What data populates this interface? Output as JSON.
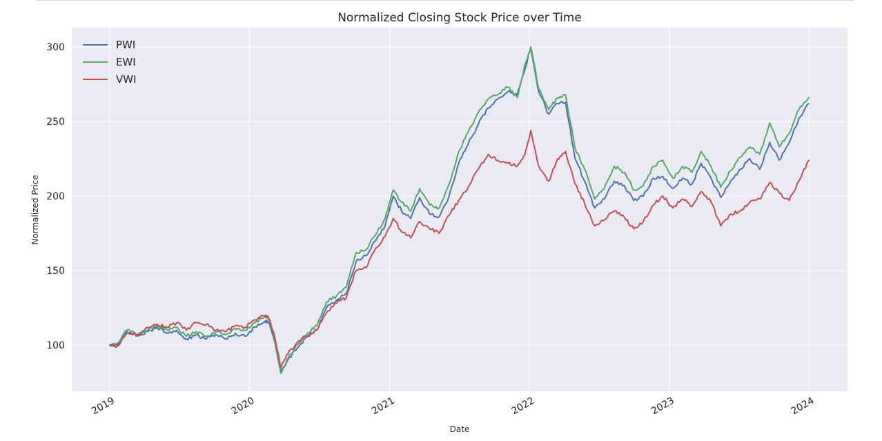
{
  "chart_data": {
    "type": "line",
    "title": "Normalized Closing Stock Price over Time",
    "xlabel": "Date",
    "ylabel": "Normalized Price",
    "xlim": [
      "2018-09-24",
      "2024-04-10"
    ],
    "ylim": [
      69,
      313
    ],
    "x_ticks": [
      "2019",
      "2020",
      "2021",
      "2022",
      "2023",
      "2024"
    ],
    "y_ticks": [
      100,
      150,
      200,
      250,
      300
    ],
    "grid": true,
    "legend_position": "top-left",
    "series": [
      {
        "name": "PWI",
        "color": "#4c72b0",
        "points": [
          [
            "2019-01-01",
            100
          ],
          [
            "2019-01-20",
            100
          ],
          [
            "2019-02-15",
            109
          ],
          [
            "2019-03-15",
            106
          ],
          [
            "2019-04-10",
            109
          ],
          [
            "2019-05-05",
            112
          ],
          [
            "2019-05-31",
            108
          ],
          [
            "2019-06-25",
            110
          ],
          [
            "2019-07-20",
            104
          ],
          [
            "2019-08-15",
            107
          ],
          [
            "2019-09-10",
            104
          ],
          [
            "2019-10-05",
            107
          ],
          [
            "2019-10-31",
            104
          ],
          [
            "2019-11-25",
            108
          ],
          [
            "2019-12-20",
            106
          ],
          [
            "2020-01-15",
            112
          ],
          [
            "2020-02-10",
            116
          ],
          [
            "2020-02-20",
            115
          ],
          [
            "2020-03-05",
            104
          ],
          [
            "2020-03-23",
            82
          ],
          [
            "2020-04-10",
            90
          ],
          [
            "2020-05-05",
            98
          ],
          [
            "2020-05-31",
            106
          ],
          [
            "2020-06-25",
            110
          ],
          [
            "2020-07-20",
            125
          ],
          [
            "2020-08-15",
            130
          ],
          [
            "2020-09-10",
            135
          ],
          [
            "2020-10-05",
            156
          ],
          [
            "2020-10-31",
            160
          ],
          [
            "2020-11-25",
            170
          ],
          [
            "2020-12-20",
            180
          ],
          [
            "2021-01-10",
            200
          ],
          [
            "2021-02-01",
            190
          ],
          [
            "2021-02-25",
            185
          ],
          [
            "2021-03-20",
            199
          ],
          [
            "2021-04-15",
            188
          ],
          [
            "2021-05-10",
            186
          ],
          [
            "2021-06-05",
            200
          ],
          [
            "2021-06-30",
            222
          ],
          [
            "2021-07-25",
            235
          ],
          [
            "2021-08-20",
            248
          ],
          [
            "2021-09-15",
            259
          ],
          [
            "2021-10-10",
            265
          ],
          [
            "2021-11-05",
            270
          ],
          [
            "2021-11-30",
            268
          ],
          [
            "2021-12-20",
            285
          ],
          [
            "2022-01-04",
            300
          ],
          [
            "2022-01-25",
            270
          ],
          [
            "2022-02-20",
            255
          ],
          [
            "2022-03-15",
            262
          ],
          [
            "2022-04-05",
            263
          ],
          [
            "2022-04-30",
            225
          ],
          [
            "2022-05-25",
            210
          ],
          [
            "2022-06-20",
            192
          ],
          [
            "2022-07-15",
            198
          ],
          [
            "2022-08-10",
            210
          ],
          [
            "2022-09-05",
            207
          ],
          [
            "2022-09-30",
            197
          ],
          [
            "2022-10-25",
            200
          ],
          [
            "2022-11-20",
            212
          ],
          [
            "2022-12-15",
            213
          ],
          [
            "2023-01-10",
            205
          ],
          [
            "2023-02-05",
            212
          ],
          [
            "2023-03-01",
            208
          ],
          [
            "2023-03-25",
            222
          ],
          [
            "2023-04-20",
            212
          ],
          [
            "2023-05-15",
            199
          ],
          [
            "2023-06-10",
            210
          ],
          [
            "2023-07-05",
            218
          ],
          [
            "2023-07-30",
            225
          ],
          [
            "2023-08-25",
            218
          ],
          [
            "2023-09-20",
            236
          ],
          [
            "2023-10-15",
            224
          ],
          [
            "2023-11-10",
            236
          ],
          [
            "2023-12-05",
            252
          ],
          [
            "2023-12-31",
            262
          ]
        ]
      },
      {
        "name": "EWI",
        "color": "#55a868",
        "points": [
          [
            "2019-01-01",
            100
          ],
          [
            "2019-01-20",
            101
          ],
          [
            "2019-02-15",
            110
          ],
          [
            "2019-03-15",
            107
          ],
          [
            "2019-04-10",
            110
          ],
          [
            "2019-05-05",
            113
          ],
          [
            "2019-05-31",
            110
          ],
          [
            "2019-06-25",
            112
          ],
          [
            "2019-07-20",
            106
          ],
          [
            "2019-08-15",
            109
          ],
          [
            "2019-09-10",
            106
          ],
          [
            "2019-10-05",
            109
          ],
          [
            "2019-10-31",
            107
          ],
          [
            "2019-11-25",
            111
          ],
          [
            "2019-12-20",
            110
          ],
          [
            "2020-01-15",
            115
          ],
          [
            "2020-02-10",
            119
          ],
          [
            "2020-02-20",
            118
          ],
          [
            "2020-03-05",
            106
          ],
          [
            "2020-03-23",
            81
          ],
          [
            "2020-04-10",
            91
          ],
          [
            "2020-05-05",
            100
          ],
          [
            "2020-05-31",
            108
          ],
          [
            "2020-06-25",
            113
          ],
          [
            "2020-07-20",
            129
          ],
          [
            "2020-08-15",
            133
          ],
          [
            "2020-09-10",
            139
          ],
          [
            "2020-10-05",
            162
          ],
          [
            "2020-10-31",
            164
          ],
          [
            "2020-11-25",
            174
          ],
          [
            "2020-12-20",
            185
          ],
          [
            "2021-01-10",
            204
          ],
          [
            "2021-02-01",
            196
          ],
          [
            "2021-02-25",
            190
          ],
          [
            "2021-03-20",
            205
          ],
          [
            "2021-04-15",
            194
          ],
          [
            "2021-05-10",
            192
          ],
          [
            "2021-06-05",
            208
          ],
          [
            "2021-06-30",
            230
          ],
          [
            "2021-07-25",
            243
          ],
          [
            "2021-08-20",
            256
          ],
          [
            "2021-09-15",
            265
          ],
          [
            "2021-10-10",
            268
          ],
          [
            "2021-11-05",
            273
          ],
          [
            "2021-11-30",
            266
          ],
          [
            "2021-12-20",
            288
          ],
          [
            "2022-01-04",
            300
          ],
          [
            "2022-01-25",
            272
          ],
          [
            "2022-02-20",
            258
          ],
          [
            "2022-03-15",
            266
          ],
          [
            "2022-04-05",
            268
          ],
          [
            "2022-04-30",
            232
          ],
          [
            "2022-05-25",
            218
          ],
          [
            "2022-06-20",
            198
          ],
          [
            "2022-07-15",
            205
          ],
          [
            "2022-08-10",
            220
          ],
          [
            "2022-09-05",
            216
          ],
          [
            "2022-09-30",
            204
          ],
          [
            "2022-10-25",
            207
          ],
          [
            "2022-11-20",
            220
          ],
          [
            "2022-12-15",
            224
          ],
          [
            "2023-01-10",
            212
          ],
          [
            "2023-02-05",
            220
          ],
          [
            "2023-03-01",
            216
          ],
          [
            "2023-03-25",
            230
          ],
          [
            "2023-04-20",
            220
          ],
          [
            "2023-05-15",
            206
          ],
          [
            "2023-06-10",
            217
          ],
          [
            "2023-07-05",
            226
          ],
          [
            "2023-07-30",
            233
          ],
          [
            "2023-08-25",
            228
          ],
          [
            "2023-09-20",
            249
          ],
          [
            "2023-10-15",
            233
          ],
          [
            "2023-11-10",
            242
          ],
          [
            "2023-12-05",
            258
          ],
          [
            "2023-12-31",
            266
          ]
        ]
      },
      {
        "name": "VWI",
        "color": "#c44e52",
        "points": [
          [
            "2019-01-01",
            100
          ],
          [
            "2019-01-20",
            99
          ],
          [
            "2019-02-15",
            108
          ],
          [
            "2019-03-15",
            107
          ],
          [
            "2019-04-10",
            112
          ],
          [
            "2019-05-05",
            114
          ],
          [
            "2019-05-31",
            112
          ],
          [
            "2019-06-25",
            115
          ],
          [
            "2019-07-20",
            110
          ],
          [
            "2019-08-15",
            115
          ],
          [
            "2019-09-10",
            114
          ],
          [
            "2019-10-05",
            110
          ],
          [
            "2019-10-31",
            109
          ],
          [
            "2019-11-25",
            113
          ],
          [
            "2019-12-20",
            112
          ],
          [
            "2020-01-15",
            117
          ],
          [
            "2020-02-10",
            120
          ],
          [
            "2020-02-20",
            118
          ],
          [
            "2020-03-05",
            108
          ],
          [
            "2020-03-23",
            85
          ],
          [
            "2020-04-10",
            94
          ],
          [
            "2020-05-05",
            102
          ],
          [
            "2020-05-31",
            106
          ],
          [
            "2020-06-25",
            110
          ],
          [
            "2020-07-20",
            122
          ],
          [
            "2020-08-15",
            128
          ],
          [
            "2020-09-10",
            132
          ],
          [
            "2020-10-05",
            150
          ],
          [
            "2020-10-31",
            152
          ],
          [
            "2020-11-25",
            165
          ],
          [
            "2020-12-20",
            173
          ],
          [
            "2021-01-10",
            185
          ],
          [
            "2021-02-01",
            176
          ],
          [
            "2021-02-25",
            172
          ],
          [
            "2021-03-20",
            183
          ],
          [
            "2021-04-15",
            178
          ],
          [
            "2021-05-10",
            175
          ],
          [
            "2021-06-05",
            187
          ],
          [
            "2021-06-30",
            197
          ],
          [
            "2021-07-25",
            206
          ],
          [
            "2021-08-20",
            218
          ],
          [
            "2021-09-15",
            228
          ],
          [
            "2021-10-10",
            224
          ],
          [
            "2021-11-05",
            222
          ],
          [
            "2021-11-30",
            220
          ],
          [
            "2021-12-20",
            228
          ],
          [
            "2022-01-04",
            244
          ],
          [
            "2022-01-25",
            220
          ],
          [
            "2022-02-20",
            210
          ],
          [
            "2022-03-15",
            225
          ],
          [
            "2022-04-05",
            230
          ],
          [
            "2022-04-30",
            208
          ],
          [
            "2022-05-25",
            195
          ],
          [
            "2022-06-20",
            180
          ],
          [
            "2022-07-15",
            184
          ],
          [
            "2022-08-10",
            190
          ],
          [
            "2022-09-05",
            186
          ],
          [
            "2022-09-30",
            178
          ],
          [
            "2022-10-25",
            183
          ],
          [
            "2022-11-20",
            194
          ],
          [
            "2022-12-15",
            200
          ],
          [
            "2023-01-10",
            192
          ],
          [
            "2023-02-05",
            198
          ],
          [
            "2023-03-01",
            193
          ],
          [
            "2023-03-25",
            203
          ],
          [
            "2023-04-20",
            196
          ],
          [
            "2023-05-15",
            180
          ],
          [
            "2023-06-10",
            188
          ],
          [
            "2023-07-05",
            190
          ],
          [
            "2023-07-30",
            196
          ],
          [
            "2023-08-25",
            198
          ],
          [
            "2023-09-20",
            209
          ],
          [
            "2023-10-15",
            202
          ],
          [
            "2023-11-10",
            197
          ],
          [
            "2023-12-05",
            210
          ],
          [
            "2023-12-31",
            224
          ]
        ]
      }
    ]
  },
  "style": {
    "plot_background": "#eaeaf2",
    "grid_color": "#ffffff",
    "text_color": "#262626"
  }
}
